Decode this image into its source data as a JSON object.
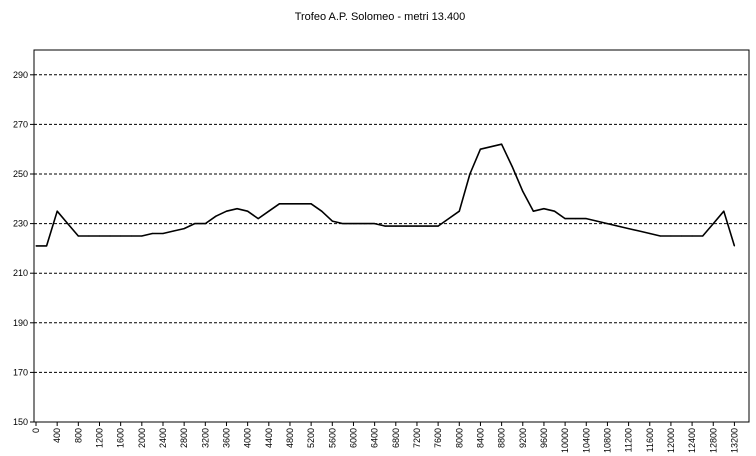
{
  "chart_data": {
    "type": "line",
    "title": "Trofeo A.P. Solomeo - metri 13.400",
    "xlabel": "",
    "ylabel": "",
    "xlim": [
      0,
      13400
    ],
    "ylim": [
      150,
      300
    ],
    "y_ticks": [
      150,
      170,
      190,
      210,
      230,
      250,
      270,
      290
    ],
    "x_ticks": [
      0,
      400,
      800,
      1200,
      1600,
      2000,
      2400,
      2800,
      3200,
      3600,
      4000,
      4400,
      4800,
      5200,
      5600,
      6000,
      6400,
      6800,
      7200,
      7600,
      8000,
      8400,
      8800,
      9200,
      9600,
      10000,
      10400,
      10800,
      11200,
      11600,
      12000,
      12400,
      12800,
      13200
    ],
    "grid": "horizontal dashed",
    "colors": {
      "line": "#000000",
      "grid": "#000000",
      "background": "#ffffff"
    },
    "series": [
      {
        "x": [
          0,
          200,
          400,
          600,
          800,
          1000,
          1200,
          1400,
          1600,
          1800,
          2000,
          2200,
          2400,
          2600,
          2800,
          3000,
          3200,
          3400,
          3600,
          3800,
          4000,
          4200,
          4400,
          4600,
          4800,
          5000,
          5200,
          5400,
          5600,
          5800,
          6000,
          6200,
          6400,
          6600,
          6800,
          7000,
          7200,
          7400,
          7600,
          7800,
          8000,
          8200,
          8400,
          8600,
          8800,
          9000,
          9200,
          9400,
          9600,
          9800,
          10000,
          10200,
          10400,
          10600,
          10800,
          11000,
          11200,
          11400,
          11600,
          11800,
          12000,
          12200,
          12400,
          12600,
          12800,
          13000,
          13200
        ],
        "y": [
          221,
          221,
          235,
          230,
          225,
          225,
          225,
          225,
          225,
          225,
          225,
          226,
          226,
          227,
          228,
          230,
          230,
          233,
          235,
          236,
          235,
          232,
          235,
          238,
          238,
          238,
          238,
          235,
          231,
          230,
          230,
          230,
          230,
          229,
          229,
          229,
          229,
          229,
          229,
          232,
          235,
          250,
          260,
          261,
          262,
          253,
          243,
          235,
          236,
          235,
          232,
          232,
          232,
          231,
          230,
          229,
          228,
          227,
          226,
          225,
          225,
          225,
          225,
          225,
          230,
          235,
          221
        ]
      }
    ]
  }
}
